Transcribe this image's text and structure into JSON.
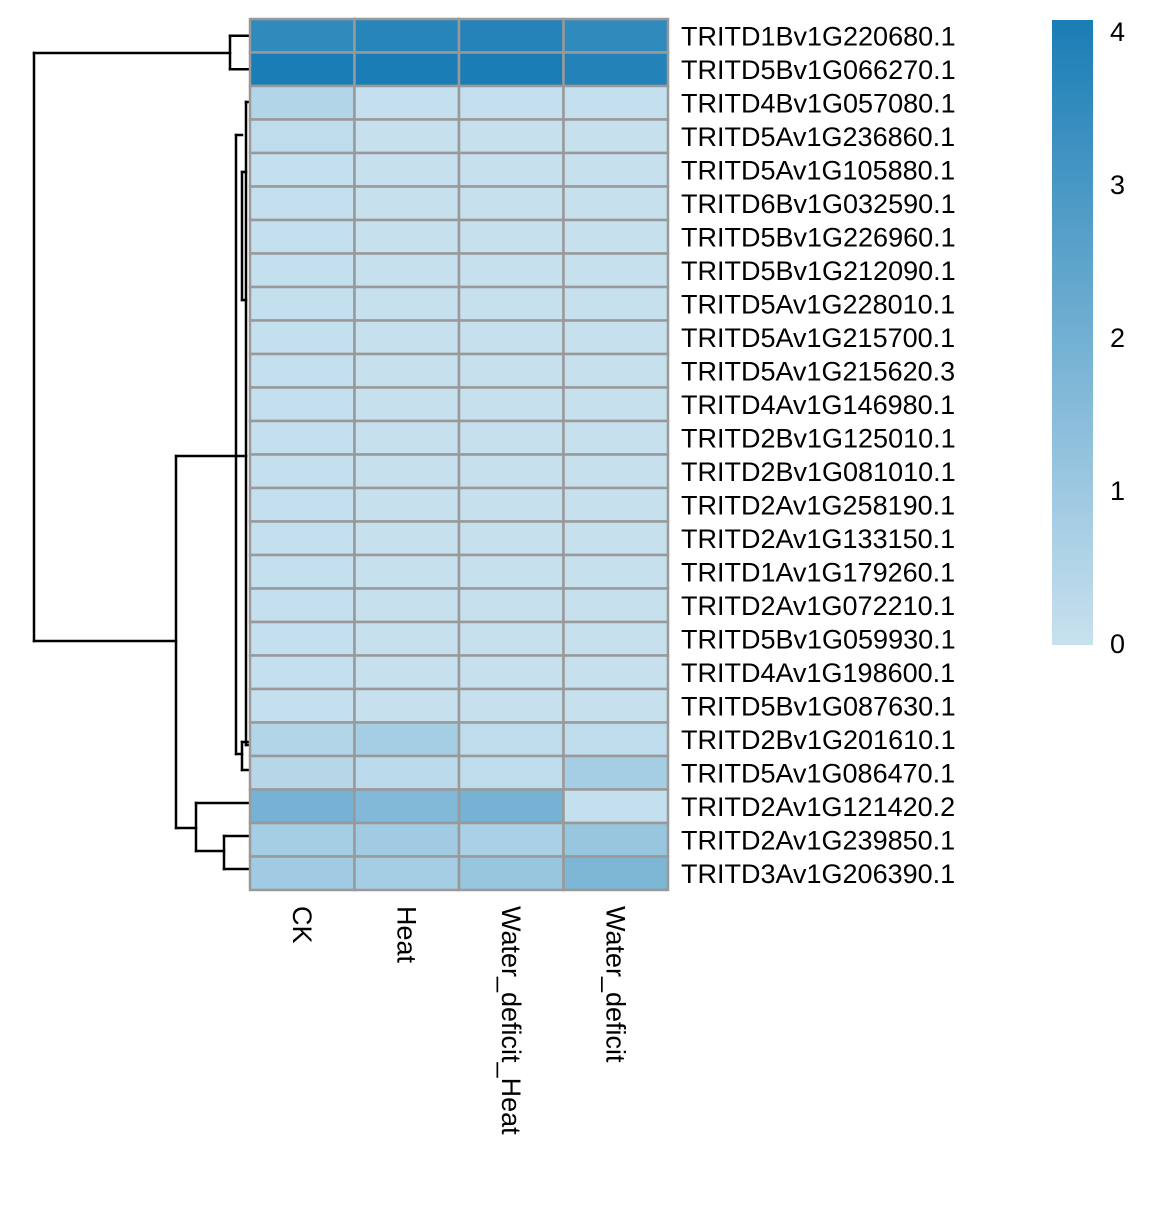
{
  "chart_data": {
    "type": "heatmap",
    "columns": [
      "CK",
      "Heat",
      "Water_deficit_Heat",
      "Water_deficit"
    ],
    "rows": [
      "TRITD1Bv1G220680.1",
      "TRITD5Bv1G066270.1",
      "TRITD4Bv1G057080.1",
      "TRITD5Av1G236860.1",
      "TRITD5Av1G105880.1",
      "TRITD6Bv1G032590.1",
      "TRITD5Bv1G226960.1",
      "TRITD5Bv1G212090.1",
      "TRITD5Av1G228010.1",
      "TRITD5Av1G215700.1",
      "TRITD5Av1G215620.3",
      "TRITD4Av1G146980.1",
      "TRITD2Bv1G125010.1",
      "TRITD2Bv1G081010.1",
      "TRITD2Av1G258190.1",
      "TRITD2Av1G133150.1",
      "TRITD1Av1G179260.1",
      "TRITD2Av1G072210.1",
      "TRITD5Bv1G059930.1",
      "TRITD4Av1G198600.1",
      "TRITD5Bv1G087630.1",
      "TRITD2Bv1G201610.1",
      "TRITD5Av1G086470.1",
      "TRITD2Av1G121420.2",
      "TRITD2Av1G239850.1",
      "TRITD3Av1G206390.1"
    ],
    "values": [
      [
        3.5,
        3.7,
        3.75,
        3.5
      ],
      [
        4.0,
        4.0,
        4.0,
        3.8
      ],
      [
        0.5,
        0.1,
        0.1,
        0.1
      ],
      [
        0.2,
        0.05,
        0.05,
        0.05
      ],
      [
        0.1,
        0.05,
        0.05,
        0.05
      ],
      [
        0.1,
        0.05,
        0.05,
        0.05
      ],
      [
        0.1,
        0.05,
        0.05,
        0.05
      ],
      [
        0.1,
        0.05,
        0.05,
        0.05
      ],
      [
        0.1,
        0.05,
        0.05,
        0.05
      ],
      [
        0.1,
        0.05,
        0.05,
        0.05
      ],
      [
        0.1,
        0.05,
        0.05,
        0.05
      ],
      [
        0.1,
        0.05,
        0.05,
        0.05
      ],
      [
        0.1,
        0.05,
        0.05,
        0.05
      ],
      [
        0.1,
        0.05,
        0.05,
        0.05
      ],
      [
        0.1,
        0.05,
        0.05,
        0.05
      ],
      [
        0.1,
        0.05,
        0.05,
        0.05
      ],
      [
        0.1,
        0.05,
        0.05,
        0.05
      ],
      [
        0.1,
        0.05,
        0.05,
        0.05
      ],
      [
        0.1,
        0.05,
        0.05,
        0.05
      ],
      [
        0.1,
        0.05,
        0.05,
        0.05
      ],
      [
        0.1,
        0.05,
        0.05,
        0.05
      ],
      [
        0.5,
        0.8,
        0.2,
        0.2
      ],
      [
        0.4,
        0.3,
        0.2,
        0.8
      ],
      [
        1.9,
        1.6,
        1.9,
        0.1
      ],
      [
        0.8,
        0.9,
        0.7,
        1.1
      ],
      [
        0.9,
        0.8,
        1.1,
        1.7
      ]
    ],
    "colorbar": {
      "ticks": [
        "0",
        "1",
        "2",
        "3",
        "4"
      ],
      "range": [
        0,
        4
      ],
      "low_color": "#c8e1ef",
      "high_color": "#1a7db5"
    },
    "grid": true,
    "legend_position": "right",
    "row_dendrogram": "left"
  }
}
